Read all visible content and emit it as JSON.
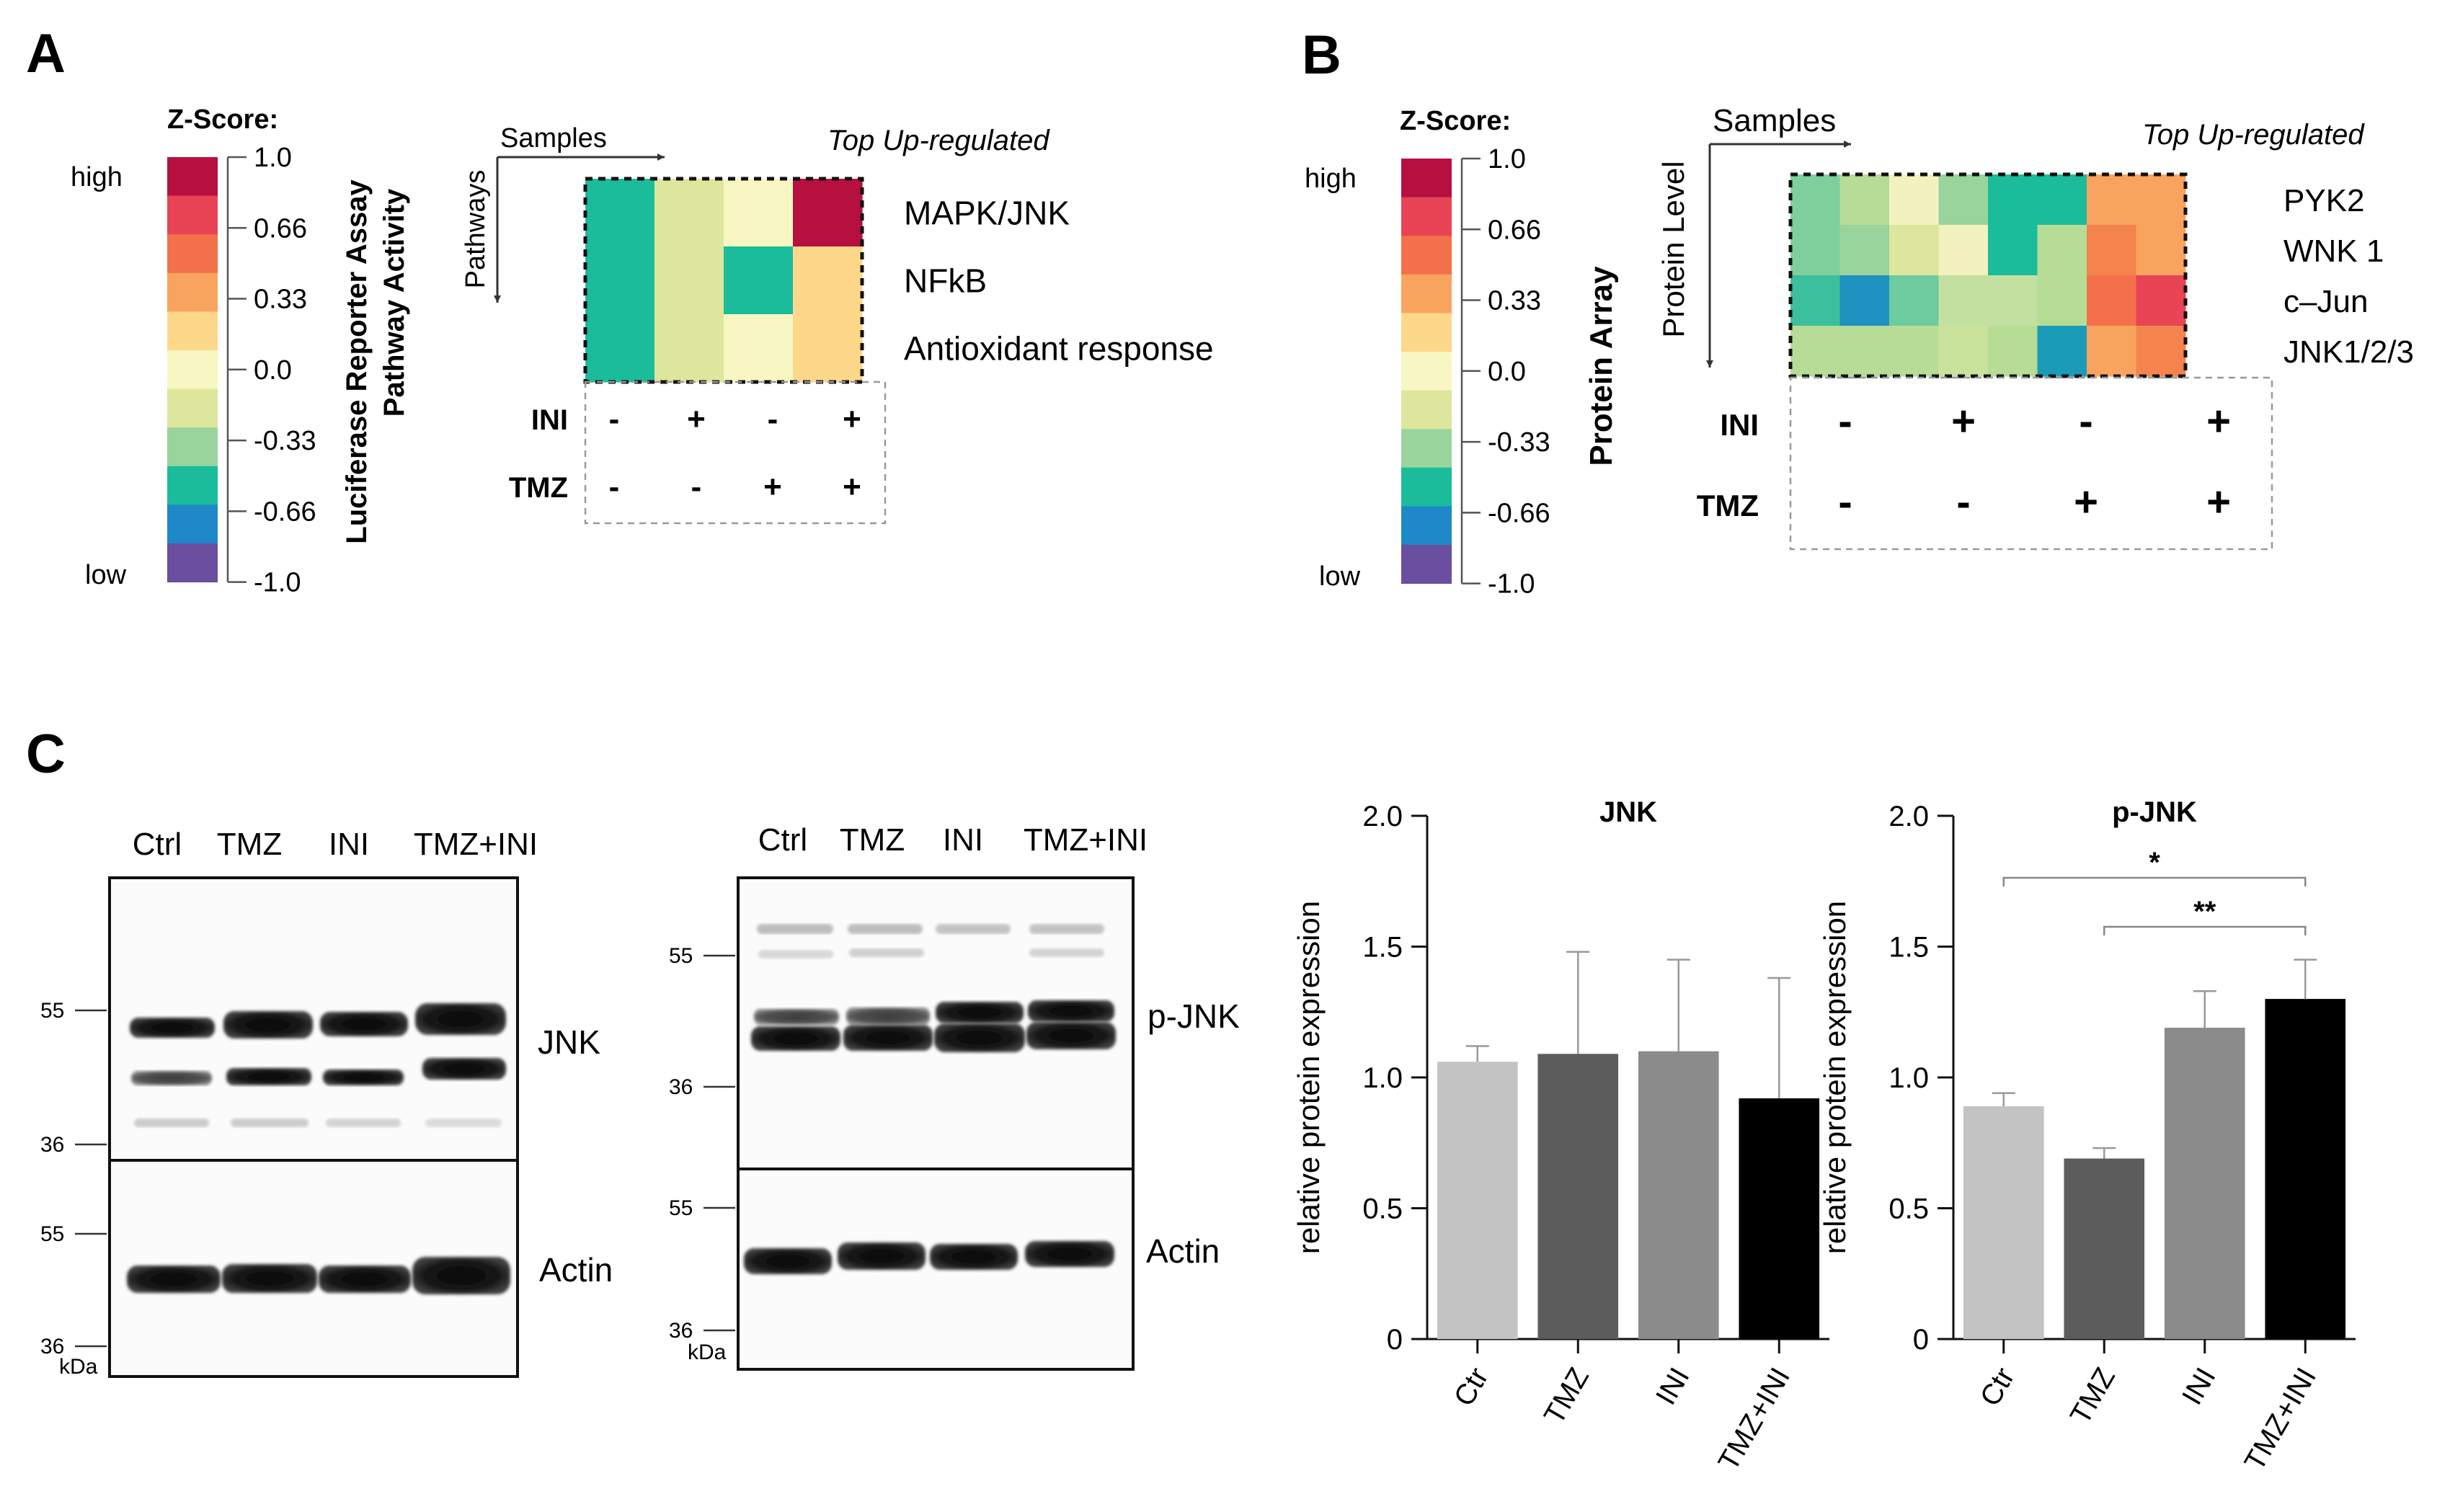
{
  "panel_a": {
    "letter": "A",
    "legend": {
      "title": "Z-Score:",
      "high": "high",
      "low": "low",
      "ticks": [
        "1.0",
        "0.66",
        "0.33",
        "0.0",
        "-0.33",
        "-0.66",
        "-1.0"
      ],
      "colors": [
        "#b5103f",
        "#e84455",
        "#f4704a",
        "#f9a45e",
        "#fdd88a",
        "#f8f6c2",
        "#dde69c",
        "#98d49b",
        "#1abc9c",
        "#1e88c8",
        "#6a4ea0"
      ]
    },
    "ylabel_line1": "Luciferase Reporter Assay",
    "ylabel_line2": "Pathway Activity",
    "axis_x": "Samples",
    "axis_y": "Pathways",
    "header": "Top Up-regulated",
    "rows": [
      "MAPK/JNK",
      "NFkB",
      "Antioxidant response"
    ],
    "cells": [
      [
        "#1abc9c",
        "#dde69c",
        "#f8f6c2",
        "#b5103f"
      ],
      [
        "#1abc9c",
        "#dde69c",
        "#1abc9c",
        "#fdd88a"
      ],
      [
        "#1abc9c",
        "#dde69c",
        "#f8f6c2",
        "#fdd88a"
      ]
    ],
    "treatments": [
      {
        "label": "INI",
        "signs": [
          "-",
          "+",
          "-",
          "+"
        ]
      },
      {
        "label": "TMZ",
        "signs": [
          "-",
          "-",
          "+",
          "+"
        ]
      }
    ]
  },
  "panel_b": {
    "letter": "B",
    "legend": {
      "title": "Z-Score:",
      "high": "high",
      "low": "low",
      "ticks": [
        "1.0",
        "0.66",
        "0.33",
        "0.0",
        "-0.33",
        "-0.66",
        "-1.0"
      ],
      "colors": [
        "#b5103f",
        "#e84455",
        "#f4704a",
        "#f9a45e",
        "#fdd88a",
        "#f8f6c2",
        "#dde69c",
        "#98d49b",
        "#1abc9c",
        "#1e88c8",
        "#6a4ea0"
      ]
    },
    "ylabel": "Protein Array",
    "axis_x": "Samples",
    "axis_y": "Protein Level",
    "header": "Top Up-regulated",
    "rows": [
      "PYK2",
      "WNK 1",
      "c–Jun",
      "JNK1/2/3"
    ],
    "cells": [
      [
        "#7fcf9d",
        "#b6dc96",
        "#f3f1bd",
        "#98d49b",
        "#1abc9c",
        "#1abc9c",
        "#f9a45e",
        "#f9a45e"
      ],
      [
        "#7fcf9d",
        "#98d49b",
        "#dde69c",
        "#f3f1bd",
        "#1abc9c",
        "#b6dc96",
        "#f4834e",
        "#f9a45e"
      ],
      [
        "#3cbf9c",
        "#1e92c0",
        "#6dcb9f",
        "#c4e0a0",
        "#c4e0a0",
        "#b6dc96",
        "#f4704a",
        "#e84455"
      ],
      [
        "#b6dc96",
        "#b6dc96",
        "#b6dc96",
        "#c8e29c",
        "#b6dc96",
        "#1a9cb8",
        "#f9a45e",
        "#f4834e"
      ]
    ],
    "treatments": [
      {
        "label": "INI",
        "signs": [
          "-",
          "+",
          "-",
          "+"
        ]
      },
      {
        "label": "TMZ",
        "signs": [
          "-",
          "-",
          "+",
          "+"
        ]
      }
    ]
  },
  "panel_c": {
    "letter": "C",
    "blot1": {
      "lanes": [
        "Ctrl",
        "TMZ",
        "INI",
        "TMZ+INI"
      ],
      "top_label": "JNK",
      "bottom_label": "Actin",
      "top_markers": [
        "55",
        "36"
      ],
      "bottom_markers": [
        "55",
        "36"
      ],
      "unit": "kDa"
    },
    "blot2": {
      "lanes": [
        "Ctrl",
        "TMZ",
        "INI",
        "TMZ+INI"
      ],
      "top_label": "p-JNK",
      "bottom_label": "Actin",
      "top_markers": [
        "55",
        "36"
      ],
      "bottom_markers": [
        "55",
        "36"
      ],
      "unit": "kDa"
    }
  },
  "chart_data": [
    {
      "type": "bar",
      "title": "JNK",
      "ylabel": "relative protein expression",
      "xlabel": "",
      "categories": [
        "Ctr",
        "TMZ",
        "INI",
        "TMZ+INI"
      ],
      "values": [
        1.06,
        1.09,
        1.1,
        0.92
      ],
      "errors": [
        0.06,
        0.39,
        0.35,
        0.46
      ],
      "ylim": [
        0,
        2.0
      ],
      "yticks": [
        "0",
        "0.5",
        "1.0",
        "1.5",
        "2.0"
      ],
      "bar_colors": [
        "#c3c3c3",
        "#5c5c5c",
        "#8b8b8b",
        "#000000"
      ],
      "significance": []
    },
    {
      "type": "bar",
      "title": "p-JNK",
      "ylabel": "relative protein expression",
      "xlabel": "",
      "categories": [
        "Ctr",
        "TMZ",
        "INI",
        "TMZ+INI"
      ],
      "values": [
        0.89,
        0.69,
        1.19,
        1.3
      ],
      "errors": [
        0.05,
        0.04,
        0.14,
        0.15
      ],
      "ylim": [
        0,
        2.0
      ],
      "yticks": [
        "0",
        "0.5",
        "1.0",
        "1.5",
        "2.0"
      ],
      "bar_colors": [
        "#c3c3c3",
        "#5c5c5c",
        "#8b8b8b",
        "#000000"
      ],
      "significance": [
        {
          "from": 0,
          "to": 3,
          "label": "*"
        },
        {
          "from": 1,
          "to": 3,
          "label": "**"
        }
      ]
    }
  ]
}
